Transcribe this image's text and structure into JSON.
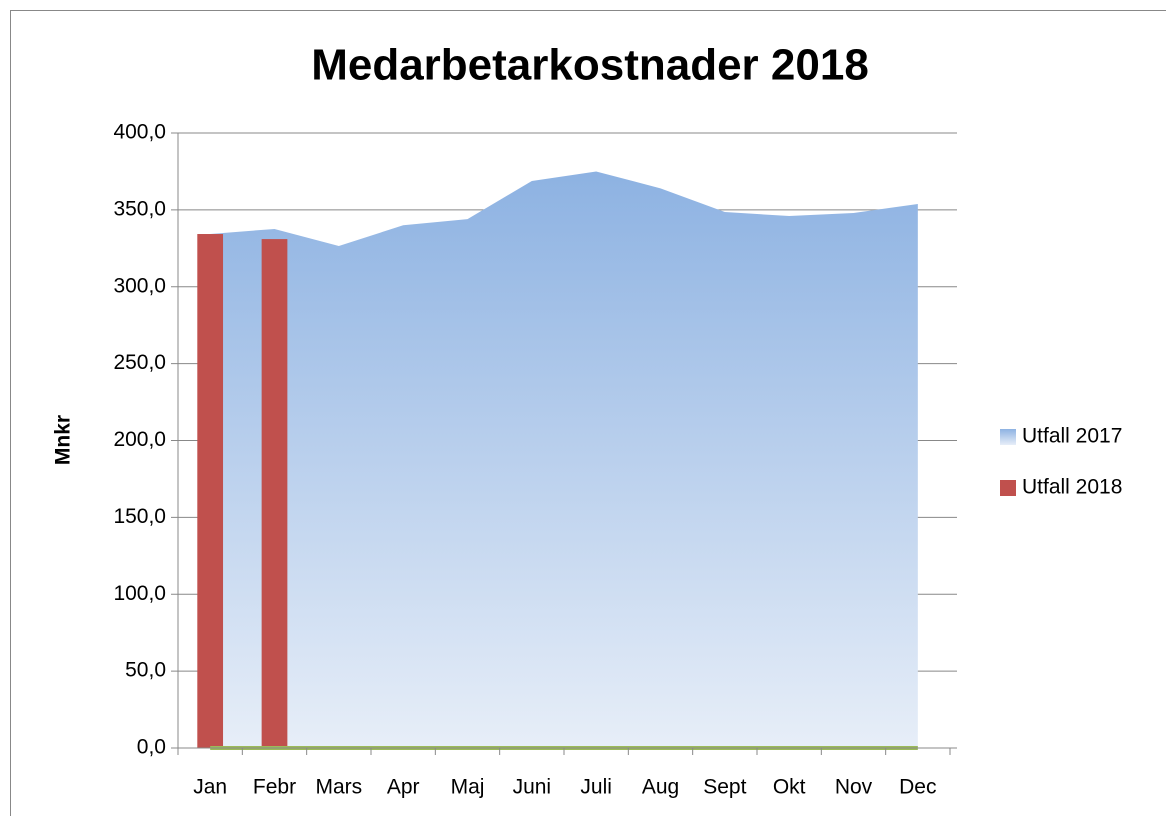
{
  "chart_data": {
    "type": "combo",
    "title": "Medarbetarkostnader 2018",
    "y_label": "Mnkr",
    "categories": [
      "Jan",
      "Febr",
      "Mars",
      "Apr",
      "Maj",
      "Juni",
      "Juli",
      "Aug",
      "Sept",
      "Okt",
      "Nov",
      "Dec"
    ],
    "series": [
      {
        "name": "Utfall 2017",
        "type": "area",
        "color": "#95b6e3",
        "values": [
          334.3,
          337.6,
          326.5,
          340,
          344,
          368.8,
          375,
          364,
          348.6,
          346,
          348,
          353.8
        ]
      },
      {
        "name": "Utfall 2018",
        "type": "bar",
        "color": "#c0504d",
        "values": [
          334.3,
          331,
          null,
          null,
          null,
          null,
          null,
          null,
          null,
          null,
          null,
          null
        ]
      },
      {
        "type": "line",
        "color": "#9bbb59",
        "values": [
          0,
          0,
          0,
          0,
          0,
          0,
          0,
          0,
          0,
          0,
          0,
          0
        ]
      }
    ],
    "ylim": [
      0,
      400
    ],
    "yticks": [
      {
        "value": 0,
        "label": "0,0"
      },
      {
        "value": 50,
        "label": "50,0"
      },
      {
        "value": 100,
        "label": "100,0"
      },
      {
        "value": 150,
        "label": "150,0"
      },
      {
        "value": 200,
        "label": "200,0"
      },
      {
        "value": 250,
        "label": "250,0"
      },
      {
        "value": 300,
        "label": "300,0"
      },
      {
        "value": 350,
        "label": "350,0"
      },
      {
        "value": 400,
        "label": "400,0"
      }
    ],
    "grid": true,
    "legend": "right"
  }
}
